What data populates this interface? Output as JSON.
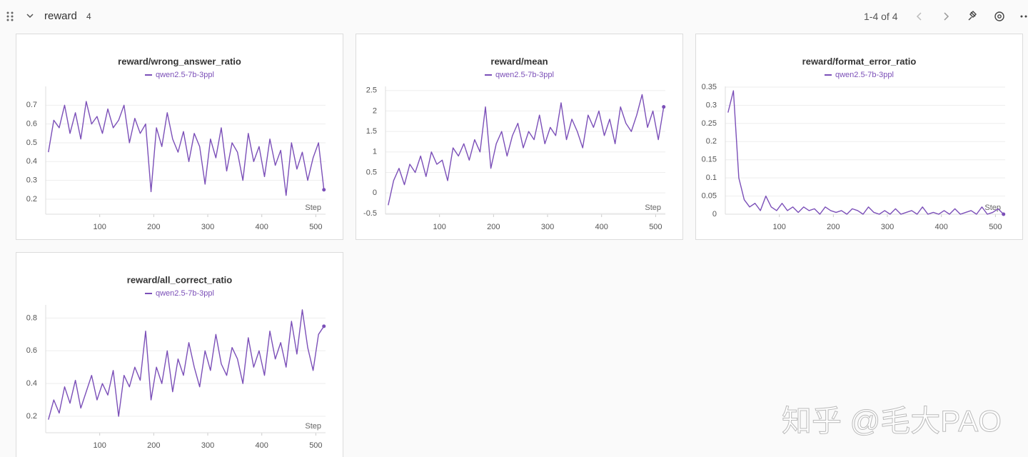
{
  "header": {
    "section": "reward",
    "count": 4,
    "pagination": "1-4 of 4"
  },
  "watermark": "知乎 @毛大PAO",
  "chart_data": [
    {
      "type": "line",
      "title": "reward/wrong_answer_ratio",
      "x_label": "Step",
      "x": [
        5,
        15,
        25,
        35,
        45,
        55,
        65,
        75,
        85,
        95,
        105,
        115,
        125,
        135,
        145,
        155,
        165,
        175,
        185,
        195,
        205,
        215,
        225,
        235,
        245,
        255,
        265,
        275,
        285,
        295,
        305,
        315,
        325,
        335,
        345,
        355,
        365,
        375,
        385,
        395,
        405,
        415,
        425,
        435,
        445,
        455,
        465,
        475,
        485,
        495,
        505,
        515
      ],
      "series": [
        {
          "name": "qwen2.5-7b-3ppl",
          "color": "#7b4fb8",
          "values": [
            0.45,
            0.62,
            0.58,
            0.7,
            0.55,
            0.66,
            0.52,
            0.72,
            0.6,
            0.64,
            0.55,
            0.68,
            0.58,
            0.62,
            0.7,
            0.5,
            0.63,
            0.55,
            0.6,
            0.24,
            0.58,
            0.48,
            0.66,
            0.52,
            0.45,
            0.56,
            0.4,
            0.55,
            0.48,
            0.28,
            0.52,
            0.42,
            0.58,
            0.35,
            0.5,
            0.45,
            0.3,
            0.55,
            0.4,
            0.48,
            0.32,
            0.52,
            0.38,
            0.46,
            0.22,
            0.5,
            0.36,
            0.45,
            0.3,
            0.42,
            0.5,
            0.25
          ]
        }
      ],
      "xlim": [
        0,
        518
      ],
      "ylim": [
        0.12,
        0.8
      ],
      "xticks": [
        100,
        200,
        300,
        400,
        500
      ],
      "yticks": [
        0.2,
        0.3,
        0.4,
        0.5,
        0.6,
        0.7
      ],
      "grid": true
    },
    {
      "type": "line",
      "title": "reward/mean",
      "x_label": "Step",
      "x": [
        5,
        15,
        25,
        35,
        45,
        55,
        65,
        75,
        85,
        95,
        105,
        115,
        125,
        135,
        145,
        155,
        165,
        175,
        185,
        195,
        205,
        215,
        225,
        235,
        245,
        255,
        265,
        275,
        285,
        295,
        305,
        315,
        325,
        335,
        345,
        355,
        365,
        375,
        385,
        395,
        405,
        415,
        425,
        435,
        445,
        455,
        465,
        475,
        485,
        495,
        505,
        515
      ],
      "series": [
        {
          "name": "qwen2.5-7b-3ppl",
          "color": "#7b4fb8",
          "values": [
            -0.3,
            0.3,
            0.6,
            0.2,
            0.7,
            0.5,
            0.9,
            0.4,
            1.0,
            0.7,
            0.8,
            0.3,
            1.1,
            0.9,
            1.2,
            0.8,
            1.3,
            1.0,
            2.1,
            0.6,
            1.2,
            1.5,
            0.9,
            1.4,
            1.7,
            1.1,
            1.5,
            1.3,
            1.9,
            1.2,
            1.6,
            1.4,
            2.2,
            1.3,
            1.8,
            1.5,
            1.1,
            1.9,
            1.6,
            2.0,
            1.4,
            1.8,
            1.2,
            2.1,
            1.7,
            1.5,
            1.9,
            2.4,
            1.6,
            2.0,
            1.3,
            2.1
          ]
        }
      ],
      "xlim": [
        0,
        518
      ],
      "ylim": [
        -0.52,
        2.6
      ],
      "xticks": [
        100,
        200,
        300,
        400,
        500
      ],
      "yticks": [
        -0.5,
        0,
        0.5,
        1,
        1.5,
        2,
        2.5
      ],
      "grid": true
    },
    {
      "type": "line",
      "title": "reward/format_error_ratio",
      "x_label": "Step",
      "x": [
        5,
        15,
        25,
        35,
        45,
        55,
        65,
        75,
        85,
        95,
        105,
        115,
        125,
        135,
        145,
        155,
        165,
        175,
        185,
        195,
        205,
        215,
        225,
        235,
        245,
        255,
        265,
        275,
        285,
        295,
        305,
        315,
        325,
        335,
        345,
        355,
        365,
        375,
        385,
        395,
        405,
        415,
        425,
        435,
        445,
        455,
        465,
        475,
        485,
        495,
        505,
        515
      ],
      "series": [
        {
          "name": "qwen2.5-7b-3ppl",
          "color": "#7b4fb8",
          "values": [
            0.28,
            0.34,
            0.1,
            0.04,
            0.02,
            0.03,
            0.01,
            0.05,
            0.02,
            0.01,
            0.03,
            0.01,
            0.02,
            0.005,
            0.02,
            0.01,
            0.015,
            0,
            0.02,
            0.01,
            0.005,
            0.01,
            0,
            0.015,
            0.01,
            0,
            0.02,
            0.005,
            0,
            0.01,
            0,
            0.015,
            0,
            0.005,
            0.01,
            0,
            0.02,
            0,
            0.005,
            0,
            0.01,
            0,
            0.015,
            0,
            0.005,
            0.01,
            0,
            0.02,
            0,
            0.005,
            0.015,
            0
          ]
        }
      ],
      "xlim": [
        0,
        518
      ],
      "ylim": [
        0,
        0.352
      ],
      "xticks": [
        100,
        200,
        300,
        400,
        500
      ],
      "yticks": [
        0,
        0.05,
        0.1,
        0.15,
        0.2,
        0.25,
        0.3,
        0.35
      ],
      "grid": true
    },
    {
      "type": "line",
      "title": "reward/all_correct_ratio",
      "x_label": "Step",
      "x": [
        5,
        15,
        25,
        35,
        45,
        55,
        65,
        75,
        85,
        95,
        105,
        115,
        125,
        135,
        145,
        155,
        165,
        175,
        185,
        195,
        205,
        215,
        225,
        235,
        245,
        255,
        265,
        275,
        285,
        295,
        305,
        315,
        325,
        335,
        345,
        355,
        365,
        375,
        385,
        395,
        405,
        415,
        425,
        435,
        445,
        455,
        465,
        475,
        485,
        495,
        505,
        515
      ],
      "series": [
        {
          "name": "qwen2.5-7b-3ppl",
          "color": "#7b4fb8",
          "values": [
            0.18,
            0.3,
            0.22,
            0.38,
            0.28,
            0.42,
            0.25,
            0.35,
            0.45,
            0.3,
            0.4,
            0.33,
            0.48,
            0.2,
            0.45,
            0.38,
            0.5,
            0.42,
            0.72,
            0.3,
            0.5,
            0.4,
            0.6,
            0.35,
            0.55,
            0.45,
            0.65,
            0.5,
            0.38,
            0.6,
            0.48,
            0.7,
            0.52,
            0.45,
            0.62,
            0.55,
            0.4,
            0.68,
            0.5,
            0.6,
            0.45,
            0.72,
            0.55,
            0.65,
            0.5,
            0.78,
            0.58,
            0.85,
            0.62,
            0.48,
            0.7,
            0.75
          ]
        }
      ],
      "xlim": [
        0,
        518
      ],
      "ylim": [
        0.1,
        0.88
      ],
      "xticks": [
        100,
        200,
        300,
        400,
        500
      ],
      "yticks": [
        0.2,
        0.4,
        0.6,
        0.8
      ],
      "grid": true
    }
  ]
}
